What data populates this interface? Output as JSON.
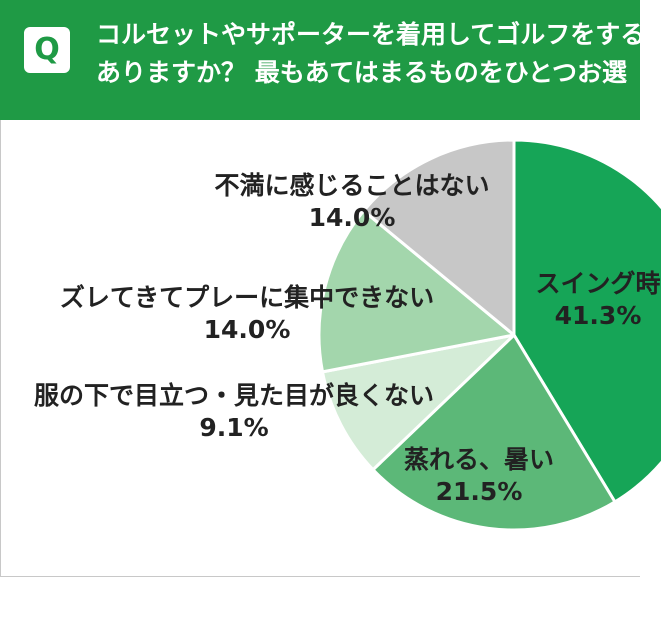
{
  "question": {
    "badge": "Q",
    "line1": "コルセットやサポーターを着用してゴルフをする",
    "line2": "ありますか？ 最もあてはまるものをひとつお選"
  },
  "colors": {
    "banner": "#1f9a45",
    "slices": [
      "#16a557",
      "#5cb878",
      "#d4ecd7",
      "#a3d6ac",
      "#c7c7c7"
    ]
  },
  "chart_data": {
    "type": "pie",
    "start_angle_deg": 0,
    "direction": "clockwise",
    "slices": [
      {
        "label": "スイング時",
        "value": 41.3,
        "value_label": "41.3%"
      },
      {
        "label": "蒸れる、暑い",
        "value": 21.5,
        "value_label": "21.5%"
      },
      {
        "label": "服の下で目立つ・見た目が良くない",
        "value": 9.1,
        "value_label": "9.1%"
      },
      {
        "label": "ズレてきてプレーに集中できない",
        "value": 14.0,
        "value_label": "14.0%"
      },
      {
        "label": "不満に感じることはない",
        "value": 14.0,
        "value_label": "14.0%"
      }
    ]
  }
}
